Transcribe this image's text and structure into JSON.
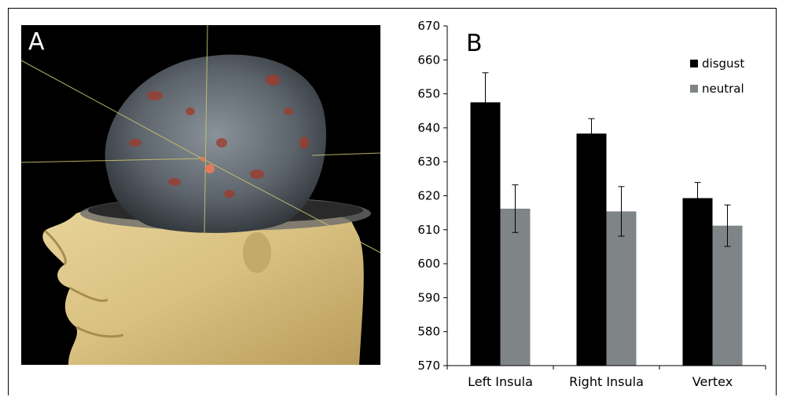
{
  "panels": {
    "a_label": "A",
    "b_label": "B"
  },
  "chart_data": {
    "type": "bar",
    "categories": [
      "Left Insula",
      "Right Insula",
      "Vertex"
    ],
    "series": [
      {
        "name": "disgust",
        "values": [
          647.5,
          638.3,
          619.3
        ],
        "errors": [
          8.7,
          4.4,
          4.6
        ],
        "color": "#000000"
      },
      {
        "name": "neutral",
        "values": [
          616.2,
          615.4,
          611.2
        ],
        "errors": [
          7.0,
          7.3,
          6.1
        ],
        "color": "#7f8487"
      }
    ],
    "ylim": [
      570,
      670
    ],
    "yticks": [
      570,
      580,
      590,
      600,
      610,
      620,
      630,
      640,
      650,
      660,
      670
    ],
    "legend_position": "top-right",
    "title": "",
    "xlabel": "",
    "ylabel": ""
  }
}
